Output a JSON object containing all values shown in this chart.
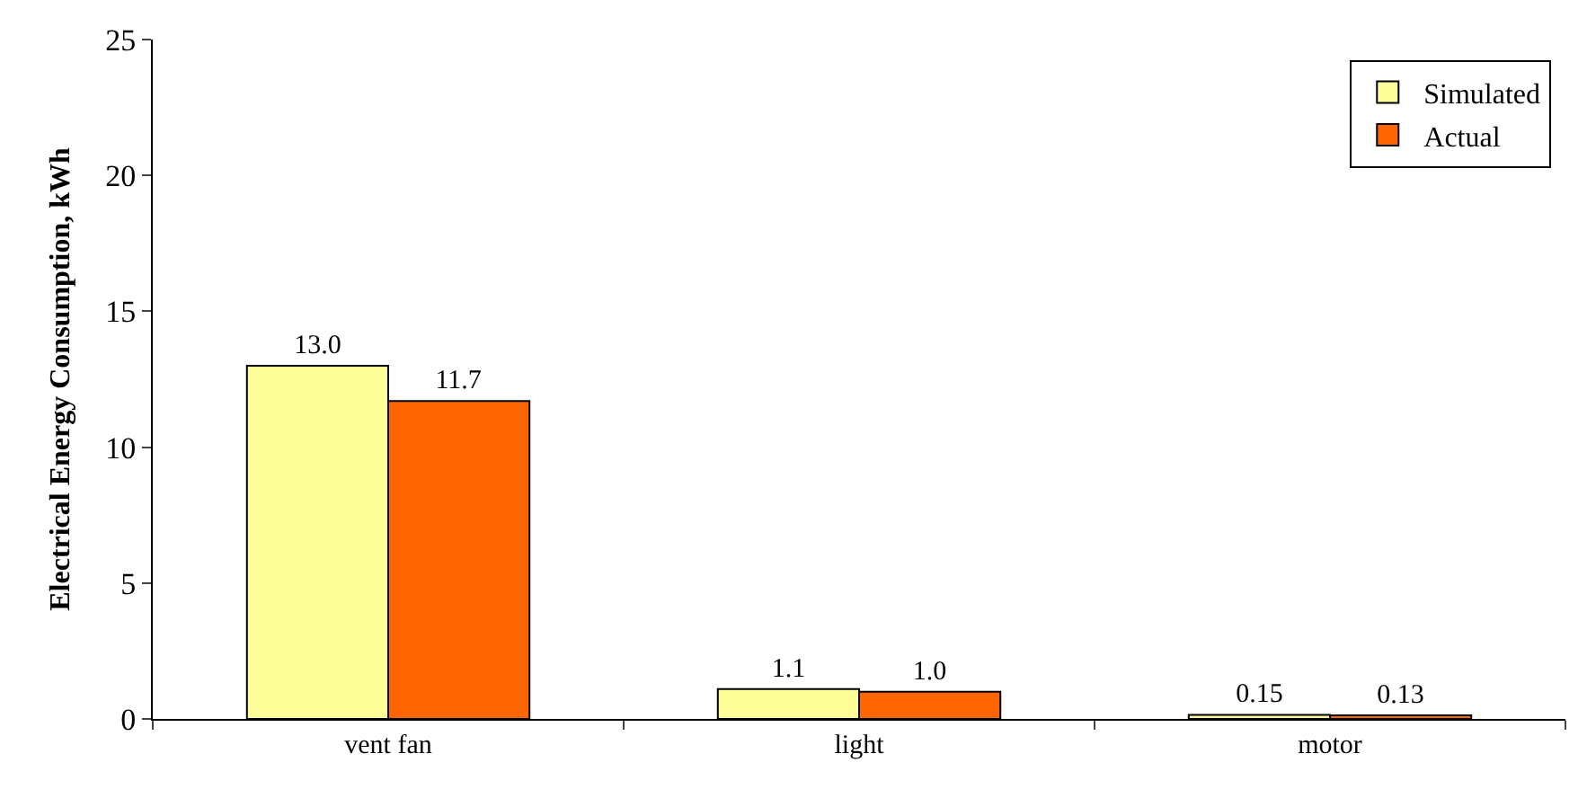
{
  "chart_data": {
    "type": "bar",
    "ylabel": "Electrical Energy Consumption, kWh",
    "categories": [
      "vent fan",
      "light",
      "motor"
    ],
    "series": [
      {
        "name": "Simulated",
        "color": "#ffff99",
        "values": [
          13.0,
          1.1,
          0.15
        ],
        "value_labels": [
          "13.0",
          "1.1",
          "0.15"
        ]
      },
      {
        "name": "Actual",
        "color": "#ff6600",
        "values": [
          11.7,
          1.0,
          0.13
        ],
        "value_labels": [
          "11.7",
          "1.0",
          "0.13"
        ]
      }
    ],
    "ylim": [
      0,
      25
    ],
    "yticks": [
      0,
      5,
      10,
      15,
      20,
      25
    ],
    "grid": false,
    "legend": "top right"
  }
}
